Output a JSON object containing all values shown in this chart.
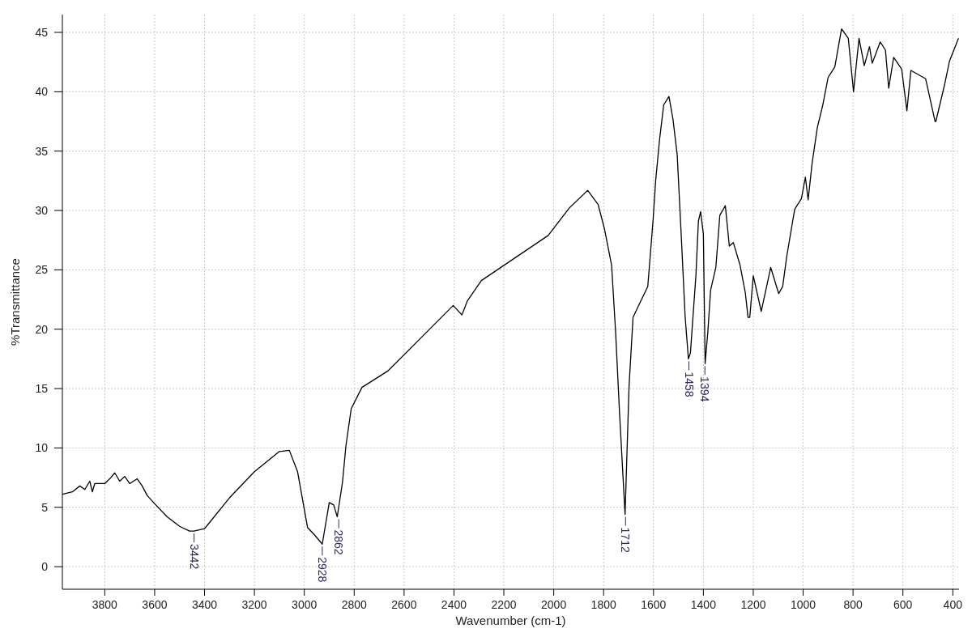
{
  "chart_data": {
    "type": "line",
    "xlabel": "Wavenumber (cm-1)",
    "ylabel": "%Transmittance",
    "xlim": [
      3970,
      375
    ],
    "ylim": [
      -1.9,
      46.5
    ],
    "xticks": [
      3800,
      3600,
      3400,
      3200,
      3000,
      2800,
      2600,
      2400,
      2200,
      2000,
      1800,
      1600,
      1400,
      1200,
      1000,
      800,
      600,
      400
    ],
    "yticks": [
      0,
      5,
      10,
      15,
      20,
      25,
      30,
      35,
      40,
      45
    ],
    "grid": true,
    "line_style": "solid",
    "marker": "none",
    "series": [
      {
        "color": "#000000",
        "x": [
          3970,
          3930,
          3900,
          3880,
          3860,
          3850,
          3840,
          3800,
          3780,
          3760,
          3740,
          3720,
          3700,
          3670,
          3650,
          3630,
          3600,
          3550,
          3500,
          3460,
          3442,
          3400,
          3300,
          3200,
          3100,
          3060,
          3027,
          2987,
          2960,
          2928,
          2900,
          2882,
          2868,
          2847,
          2833,
          2812,
          2769,
          2664,
          2403,
          2368,
          2346,
          2290,
          2022,
          1938,
          1864,
          1822,
          1796,
          1768,
          1752,
          1736,
          1714,
          1698,
          1682,
          1655,
          1623,
          1602,
          1591,
          1575,
          1559,
          1538,
          1522,
          1505,
          1489,
          1473,
          1460,
          1452,
          1430,
          1420,
          1411,
          1400,
          1393,
          1382,
          1371,
          1350,
          1334,
          1312,
          1296,
          1280,
          1253,
          1232,
          1221,
          1214,
          1200,
          1168,
          1130,
          1098,
          1082,
          1066,
          1034,
          1007,
          991,
          980,
          964,
          943,
          921,
          900,
          873,
          846,
          819,
          798,
          776,
          755,
          734,
          723,
          691,
          670,
          657,
          637,
          605,
          584,
          568,
          509,
          471,
          468,
          434,
          413,
          377
        ],
        "values": [
          6.1,
          6.3,
          6.8,
          6.5,
          7.2,
          6.3,
          7.0,
          7.0,
          7.4,
          7.9,
          7.2,
          7.6,
          7.0,
          7.4,
          6.8,
          6.0,
          5.3,
          4.2,
          3.4,
          3.0,
          3.0,
          3.2,
          5.8,
          8.0,
          9.7,
          9.8,
          8.0,
          3.3,
          2.7,
          1.9,
          5.4,
          5.2,
          4.2,
          7.1,
          10.2,
          13.3,
          15.1,
          16.5,
          22.0,
          21.2,
          22.4,
          24.1,
          27.9,
          30.2,
          31.7,
          30.5,
          28.4,
          25.4,
          19.8,
          12.9,
          4.4,
          15.2,
          21.0,
          22.2,
          23.6,
          29.1,
          32.6,
          36.1,
          38.9,
          39.6,
          37.7,
          34.7,
          28.0,
          21.0,
          17.5,
          18.0,
          24.5,
          29.1,
          29.9,
          28.0,
          17.1,
          19.8,
          23.3,
          25.2,
          29.6,
          30.4,
          27.0,
          27.3,
          25.4,
          23.1,
          21.0,
          21.0,
          24.5,
          21.5,
          25.2,
          23.0,
          23.6,
          26.1,
          30.1,
          31.0,
          32.8,
          30.9,
          34.0,
          37.0,
          38.9,
          41.2,
          42.1,
          45.3,
          44.5,
          40.0,
          44.5,
          42.2,
          43.8,
          42.4,
          44.2,
          43.5,
          40.3,
          42.9,
          41.9,
          38.4,
          41.8,
          41.1,
          37.5,
          37.5,
          40.5,
          42.6,
          44.5
        ]
      }
    ],
    "annotations": [
      {
        "text": "3442",
        "x": 3442,
        "y": 3.0
      },
      {
        "text": "2928",
        "x": 2928,
        "y": 1.9
      },
      {
        "text": "2862",
        "x": 2862,
        "y": 4.2
      },
      {
        "text": "1712",
        "x": 1712,
        "y": 4.4
      },
      {
        "text": "1458",
        "x": 1458,
        "y": 17.5
      },
      {
        "text": "1394",
        "x": 1394,
        "y": 17.1
      }
    ]
  }
}
